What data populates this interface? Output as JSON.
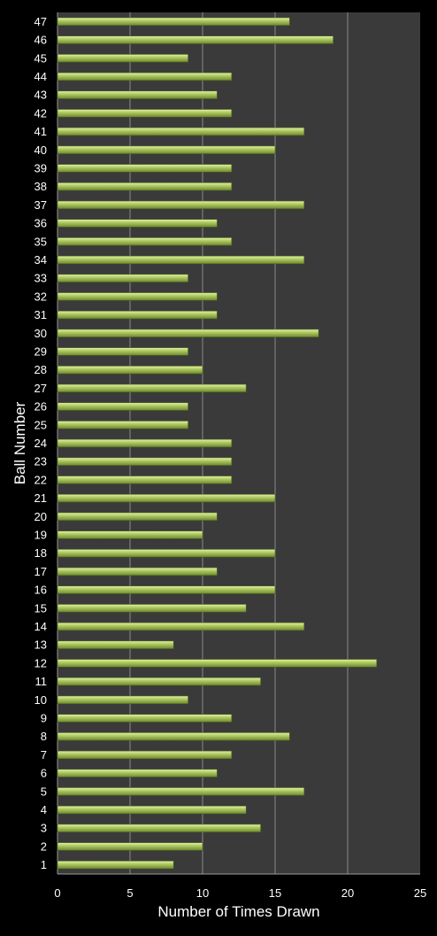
{
  "chart_data": {
    "type": "bar",
    "orientation": "horizontal",
    "title": "",
    "xlabel": "Number of Times Drawn",
    "ylabel": "Ball Number",
    "xlim": [
      0,
      25
    ],
    "xticks": [
      "0",
      "5",
      "10",
      "15",
      "20",
      "25"
    ],
    "grid": "vertical",
    "legend": "none",
    "categories": [
      "1",
      "2",
      "3",
      "4",
      "5",
      "6",
      "7",
      "8",
      "9",
      "10",
      "11",
      "12",
      "13",
      "14",
      "15",
      "16",
      "17",
      "18",
      "19",
      "20",
      "21",
      "22",
      "23",
      "24",
      "25",
      "26",
      "27",
      "28",
      "29",
      "30",
      "31",
      "32",
      "33",
      "34",
      "35",
      "36",
      "37",
      "38",
      "39",
      "40",
      "41",
      "42",
      "43",
      "44",
      "45",
      "46",
      "47"
    ],
    "values": [
      8,
      10,
      14,
      13,
      17,
      11,
      12,
      16,
      12,
      9,
      14,
      22,
      8,
      17,
      13,
      15,
      11,
      15,
      10,
      11,
      15,
      12,
      12,
      12,
      9,
      9,
      13,
      10,
      9,
      18,
      11,
      11,
      9,
      17,
      12,
      11,
      17,
      12,
      12,
      15,
      17,
      12,
      11,
      12,
      9,
      19,
      16
    ],
    "colors": {
      "background": "#000000",
      "plot_area": "#3a3a3a",
      "gridline": "#8a8a8a",
      "bar_fill": "#b5cf6a",
      "bar_light": "#e3f2a8",
      "bar_dark": "#6f8a2c",
      "text": "#ffffff"
    }
  }
}
